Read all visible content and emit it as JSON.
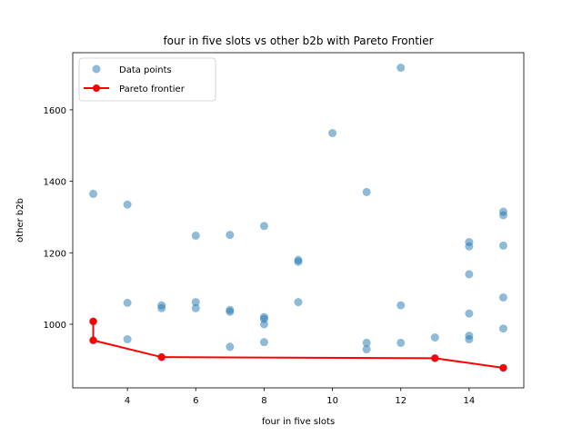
{
  "chart_data": {
    "type": "scatter",
    "title": "four in five slots vs other b2b with Pareto Frontier",
    "xlabel": "four in five slots",
    "ylabel": "other b2b",
    "xlim": [
      2.4,
      15.6
    ],
    "ylim": [
      822,
      1760
    ],
    "xticks": [
      4,
      6,
      8,
      10,
      12,
      14
    ],
    "yticks": [
      1000,
      1200,
      1400,
      1600
    ],
    "legend_position": "top-left",
    "series": [
      {
        "name": "Data points",
        "kind": "scatter",
        "color": "#1f77b4",
        "points": [
          [
            3,
            1365
          ],
          [
            3,
            1008
          ],
          [
            3,
            955
          ],
          [
            4,
            1335
          ],
          [
            4,
            1060
          ],
          [
            4,
            958
          ],
          [
            5,
            1053
          ],
          [
            5,
            1045
          ],
          [
            5,
            908
          ],
          [
            6,
            1248
          ],
          [
            6,
            1062
          ],
          [
            6,
            1045
          ],
          [
            7,
            1250
          ],
          [
            7,
            1040
          ],
          [
            7,
            1035
          ],
          [
            7,
            937
          ],
          [
            8,
            1275
          ],
          [
            8,
            1020
          ],
          [
            8,
            1015
          ],
          [
            8,
            1000
          ],
          [
            8,
            950
          ],
          [
            9,
            1180
          ],
          [
            9,
            1175
          ],
          [
            9,
            1062
          ],
          [
            10,
            1535
          ],
          [
            11,
            1370
          ],
          [
            11,
            948
          ],
          [
            11,
            930
          ],
          [
            12,
            1718
          ],
          [
            12,
            1053
          ],
          [
            12,
            948
          ],
          [
            13,
            963
          ],
          [
            13,
            905
          ],
          [
            14,
            1230
          ],
          [
            14,
            1218
          ],
          [
            14,
            1140
          ],
          [
            14,
            1030
          ],
          [
            14,
            968
          ],
          [
            14,
            958
          ],
          [
            15,
            1315
          ],
          [
            15,
            1305
          ],
          [
            15,
            1220
          ],
          [
            15,
            1075
          ],
          [
            15,
            988
          ],
          [
            15,
            878
          ]
        ]
      },
      {
        "name": "Pareto frontier",
        "kind": "line",
        "color": "#ff0000",
        "points": [
          [
            3,
            1008
          ],
          [
            3,
            955
          ],
          [
            5,
            908
          ],
          [
            13,
            905
          ],
          [
            15,
            878
          ]
        ]
      }
    ]
  }
}
